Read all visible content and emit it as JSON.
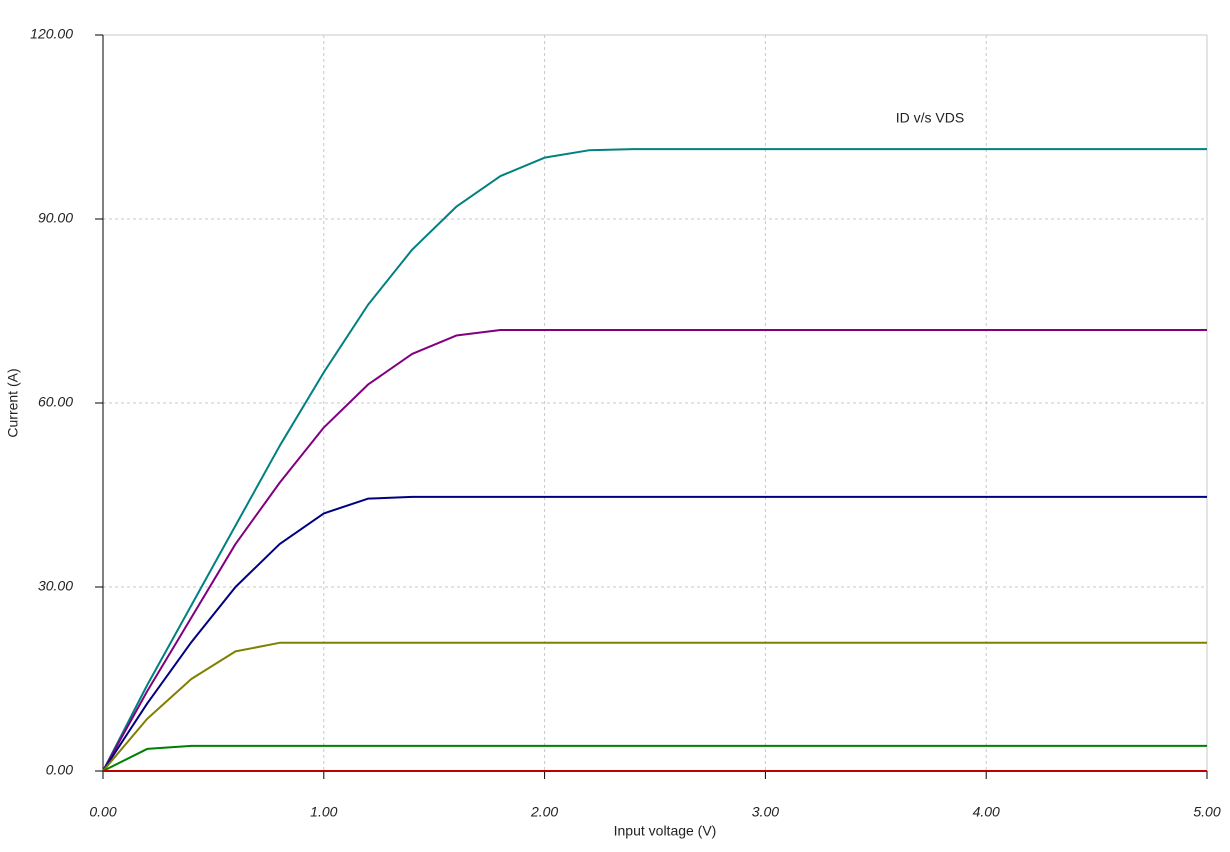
{
  "chart_data": {
    "type": "line",
    "annotation": "ID v/s VDS",
    "xlabel": "Input voltage (V)",
    "ylabel": "Current (A)",
    "x": [
      0,
      0.2,
      0.4,
      0.6,
      0.8,
      1.0,
      1.2,
      1.4,
      1.6,
      1.8,
      2.0,
      2.2,
      2.4,
      5.0
    ],
    "series": [
      {
        "color": "#008080",
        "values": [
          0,
          14,
          27,
          40,
          53,
          65,
          76,
          85,
          92,
          97,
          100,
          101.2,
          101.4,
          101.4
        ]
      },
      {
        "color": "#800080",
        "values": [
          0,
          13,
          25,
          37,
          47,
          56,
          63,
          68,
          71,
          71.9,
          71.9,
          71.9,
          71.9,
          71.9
        ]
      },
      {
        "color": "#000080",
        "values": [
          0,
          11,
          21,
          30,
          37,
          42,
          44.4,
          44.7,
          44.7,
          44.7,
          44.7,
          44.7,
          44.7,
          44.7
        ]
      },
      {
        "color": "#808000",
        "values": [
          0,
          8.5,
          15,
          19.5,
          20.9,
          20.9,
          20.9,
          20.9,
          20.9,
          20.9,
          20.9,
          20.9,
          20.9,
          20.9
        ]
      },
      {
        "color": "#008000",
        "values": [
          0,
          3.6,
          4.1,
          4.1,
          4.1,
          4.1,
          4.1,
          4.1,
          4.1,
          4.1,
          4.1,
          4.1,
          4.1,
          4.1
        ]
      },
      {
        "color": "#c00000",
        "values": [
          0,
          0,
          0,
          0,
          0,
          0,
          0,
          0,
          0,
          0,
          0,
          0,
          0,
          0
        ]
      }
    ],
    "xlim": [
      0,
      5
    ],
    "ylim": [
      0,
      120
    ],
    "xticks": [
      {
        "value": 0,
        "label": "0.00"
      },
      {
        "value": 1,
        "label": "1.00"
      },
      {
        "value": 2,
        "label": "2.00"
      },
      {
        "value": 3,
        "label": "3.00"
      },
      {
        "value": 4,
        "label": "4.00"
      },
      {
        "value": 5,
        "label": "5.00"
      }
    ],
    "yticks": [
      {
        "value": 0,
        "label": "0.00"
      },
      {
        "value": 30,
        "label": "30.00"
      },
      {
        "value": 60,
        "label": "60.00"
      },
      {
        "value": 90,
        "label": "90.00"
      },
      {
        "value": 120,
        "label": "120.00"
      }
    ],
    "grid": true
  }
}
